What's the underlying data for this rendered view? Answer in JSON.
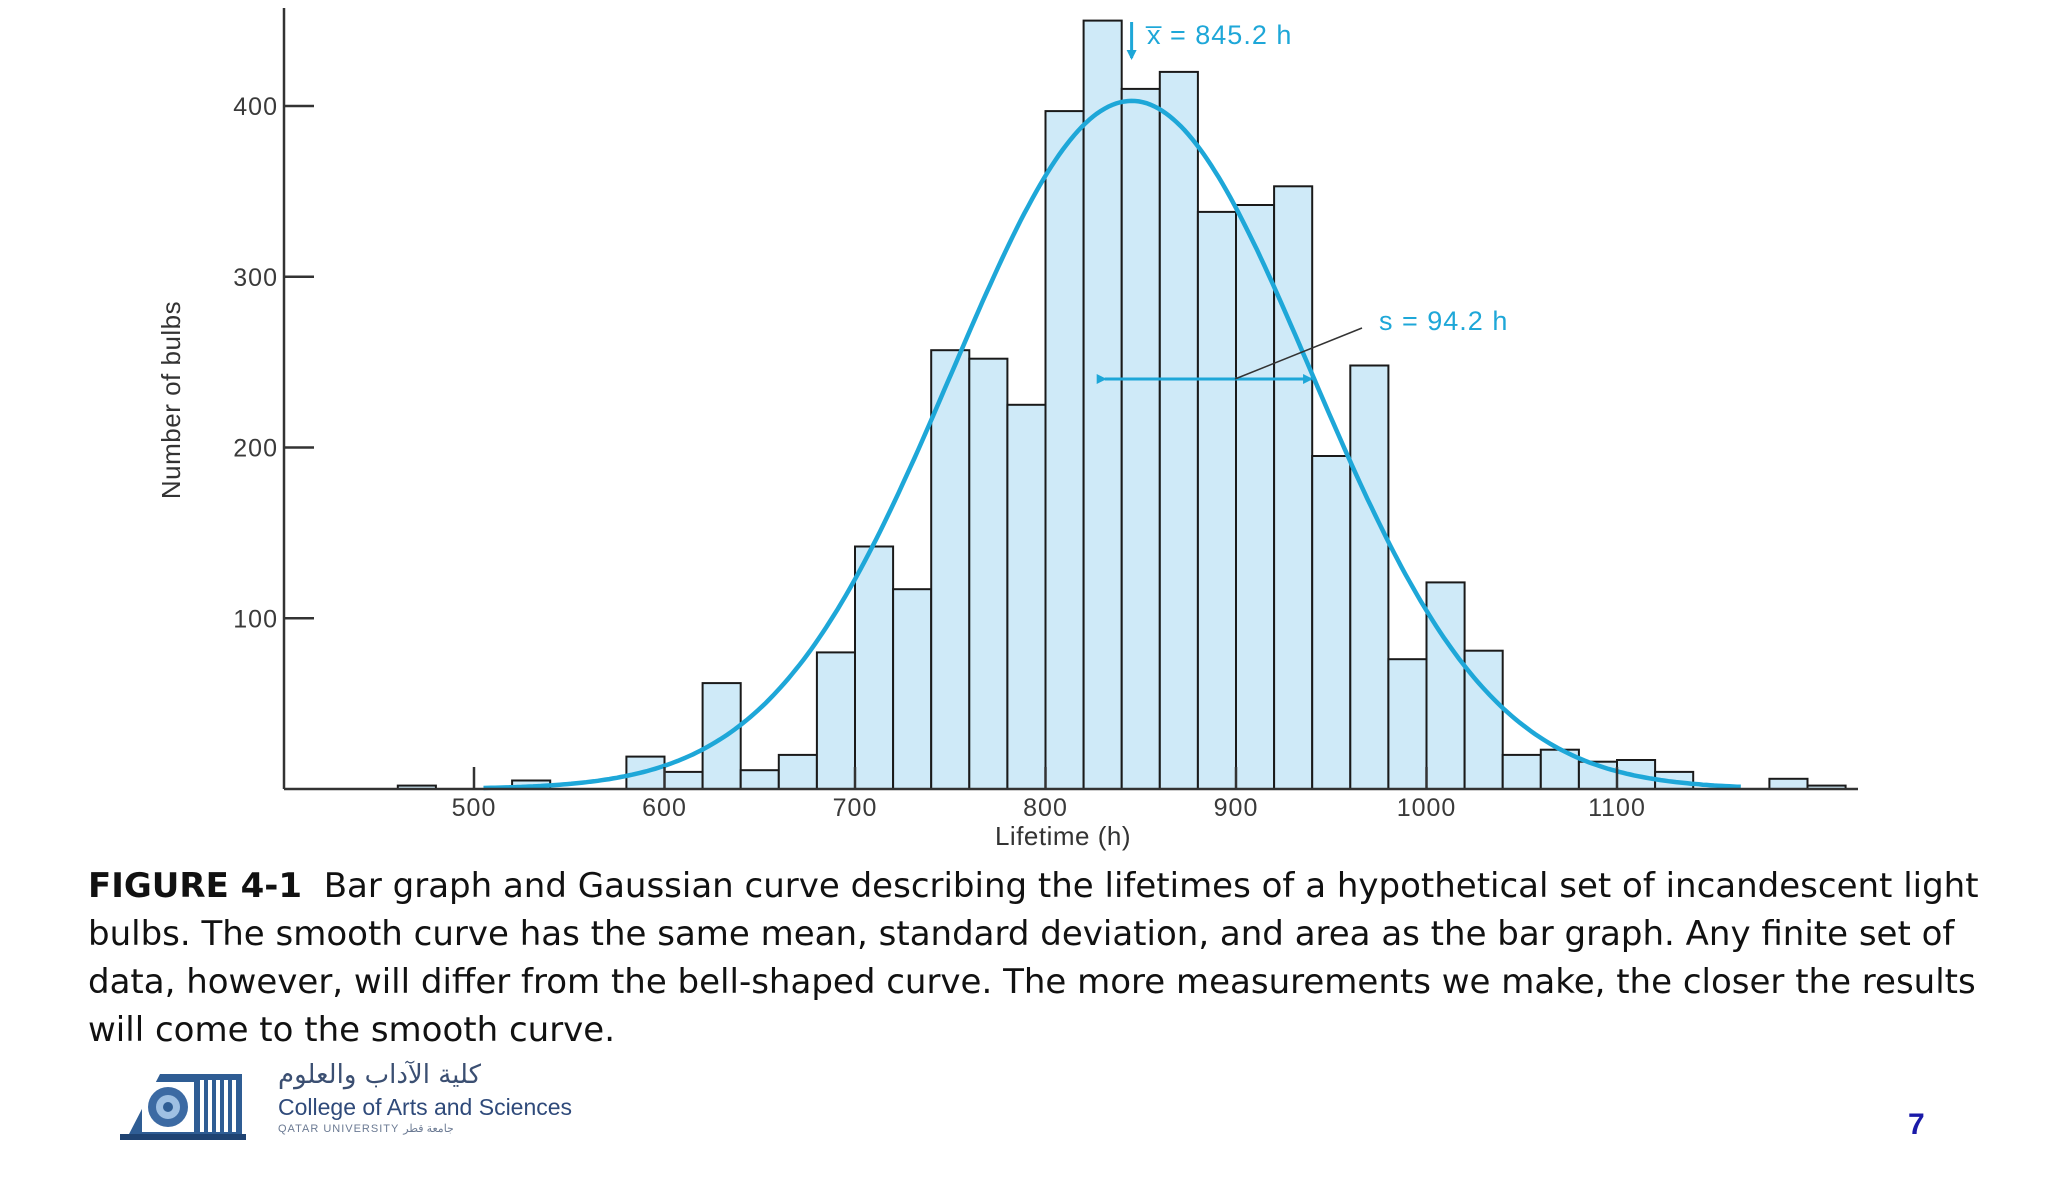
{
  "chart_data": {
    "type": "bar",
    "xlabel": "Lifetime (h)",
    "ylabel": "Number of bulbs",
    "xlim": [
      405,
      1225
    ],
    "ylim": [
      0,
      455
    ],
    "bin_width": 20,
    "x_ticks": [
      500,
      600,
      700,
      800,
      900,
      1000,
      1100
    ],
    "y_ticks": [
      100,
      200,
      300,
      400
    ],
    "bars": [
      {
        "x": 460,
        "value": 2
      },
      {
        "x": 520,
        "value": 5
      },
      {
        "x": 580,
        "value": 19
      },
      {
        "x": 600,
        "value": 10
      },
      {
        "x": 620,
        "value": 62
      },
      {
        "x": 640,
        "value": 11
      },
      {
        "x": 660,
        "value": 20
      },
      {
        "x": 680,
        "value": 80
      },
      {
        "x": 700,
        "value": 142
      },
      {
        "x": 720,
        "value": 117
      },
      {
        "x": 740,
        "value": 257
      },
      {
        "x": 760,
        "value": 252
      },
      {
        "x": 780,
        "value": 225
      },
      {
        "x": 800,
        "value": 397
      },
      {
        "x": 820,
        "value": 450
      },
      {
        "x": 840,
        "value": 410
      },
      {
        "x": 860,
        "value": 420
      },
      {
        "x": 880,
        "value": 338
      },
      {
        "x": 900,
        "value": 342
      },
      {
        "x": 920,
        "value": 353
      },
      {
        "x": 940,
        "value": 195
      },
      {
        "x": 960,
        "value": 248
      },
      {
        "x": 980,
        "value": 76
      },
      {
        "x": 1000,
        "value": 121
      },
      {
        "x": 1020,
        "value": 81
      },
      {
        "x": 1040,
        "value": 20
      },
      {
        "x": 1060,
        "value": 23
      },
      {
        "x": 1080,
        "value": 16
      },
      {
        "x": 1100,
        "value": 17
      },
      {
        "x": 1120,
        "value": 10
      },
      {
        "x": 1180,
        "value": 6
      },
      {
        "x": 1200,
        "value": 2
      }
    ],
    "curve": {
      "type": "gaussian",
      "mean": 845.2,
      "std": 94.2,
      "peak": 403
    },
    "annotations": {
      "mean_label": "x̅ = 845.2 h",
      "std_label": "s = 94.2 h"
    },
    "colors": {
      "bar_fill": "#cfeaf8",
      "bar_stroke": "#1a1a1a",
      "curve": "#1ea7d8",
      "axis": "#333333"
    }
  },
  "caption": {
    "label": "FIGURE 4-1",
    "text": "Bar graph and Gaussian curve describing the lifetimes of a hypothetical set of incandescent light bulbs. The smooth curve has the same mean, standard deviation, and area as the bar graph. Any finite set of data, however, will differ from the bell-shaped curve. The more measurements we make, the closer the results will come to the smooth curve."
  },
  "logo": {
    "arabic": "كلية الآداب والعلوم",
    "english": "College of Arts and Sciences",
    "university": "QATAR UNIVERSITY جامعة قطر"
  },
  "page_number": "7"
}
